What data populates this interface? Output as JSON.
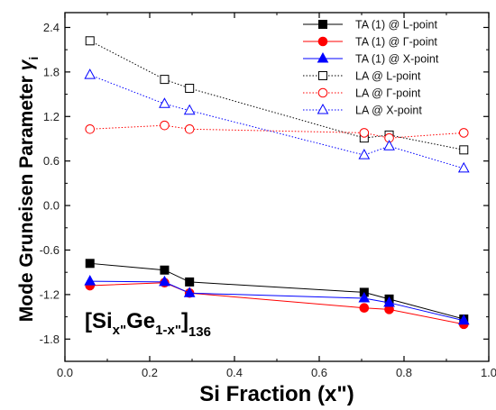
{
  "chart_data": {
    "type": "line",
    "ylabel_main": "Mode Gruneisen Parameter ",
    "ylabel_symbol": "γ",
    "ylabel_sub": "i",
    "xlabel": "Si Fraction (x\")",
    "xlim": [
      0.0,
      1.0
    ],
    "ylim": [
      -2.1,
      2.6
    ],
    "xticks": [
      "0.0",
      "0.2",
      "0.4",
      "0.6",
      "0.8",
      "1.0"
    ],
    "yticks": [
      "-1.8",
      "-1.2",
      "-0.6",
      "0.0",
      "0.6",
      "1.2",
      "1.8",
      "2.4"
    ],
    "legend_position": "top-right",
    "annotation": {
      "open": "[Si",
      "sub1": "x\"",
      "mid": "Ge",
      "sub2": "1-x\"",
      "close": "]",
      "sub3": "136"
    },
    "x": [
      0.059,
      0.235,
      0.294,
      0.706,
      0.765,
      0.941
    ],
    "series": [
      {
        "name": "TA (1) @ L-point",
        "color": "#000000",
        "marker": "square",
        "filled": true,
        "dash": "solid",
        "values": [
          -0.78,
          -0.87,
          -1.03,
          -1.17,
          -1.26,
          -1.53
        ]
      },
      {
        "name": "TA (1) @ Γ-point",
        "color": "#ff0000",
        "marker": "circle",
        "filled": true,
        "dash": "solid",
        "values": [
          -1.08,
          -1.04,
          -1.18,
          -1.38,
          -1.4,
          -1.6
        ]
      },
      {
        "name": "TA (1) @ X-point",
        "color": "#0000ff",
        "marker": "triangle",
        "filled": true,
        "dash": "solid",
        "values": [
          -1.02,
          -1.03,
          -1.18,
          -1.25,
          -1.31,
          -1.55
        ]
      },
      {
        "name": "LA @ L-point",
        "color": "#000000",
        "marker": "square",
        "filled": false,
        "dash": "dotted",
        "values": [
          2.22,
          1.7,
          1.58,
          0.91,
          0.95,
          0.75
        ]
      },
      {
        "name": "LA @ Γ-point",
        "color": "#ff0000",
        "marker": "circle",
        "filled": false,
        "dash": "dotted",
        "values": [
          1.03,
          1.08,
          1.03,
          0.98,
          0.91,
          0.98
        ]
      },
      {
        "name": "LA @ X-point",
        "color": "#0000ff",
        "marker": "triangle",
        "filled": false,
        "dash": "dotted",
        "values": [
          1.76,
          1.37,
          1.28,
          0.68,
          0.8,
          0.5
        ]
      }
    ]
  }
}
